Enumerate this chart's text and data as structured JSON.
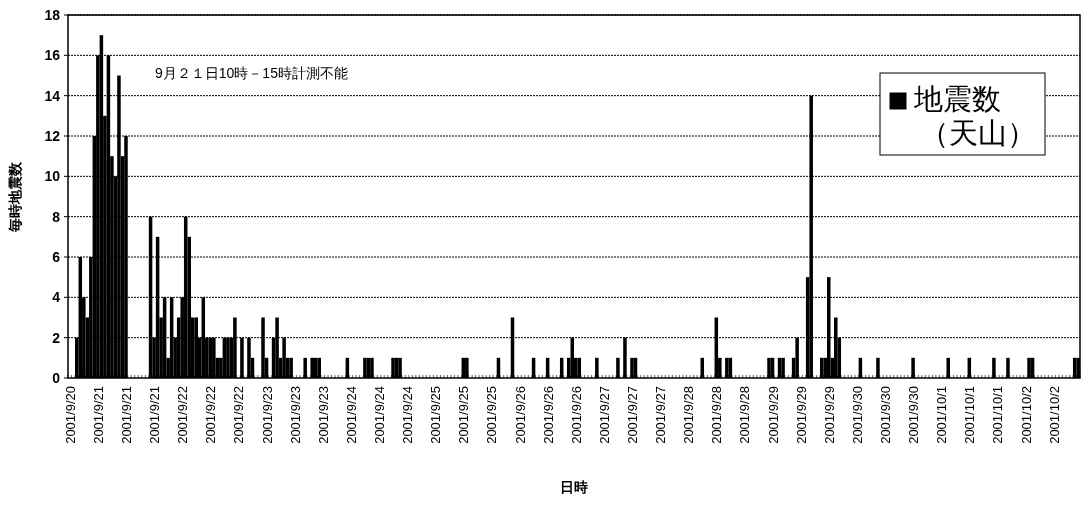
{
  "chart_data": {
    "type": "bar",
    "xlabel": "日時",
    "ylabel": "毎時地震数",
    "annotations": [
      "9月２１日10時－15時計測不能"
    ],
    "categories": [
      "2001/9/20",
      null,
      null,
      null,
      null,
      null,
      null,
      null,
      "2001/9/21",
      null,
      null,
      null,
      null,
      null,
      null,
      null,
      "2001/9/21",
      null,
      null,
      null,
      null,
      null,
      null,
      null,
      "2001/9/21",
      null,
      null,
      null,
      null,
      null,
      null,
      null,
      "2001/9/22",
      null,
      null,
      null,
      null,
      null,
      null,
      null,
      "2001/9/22",
      null,
      null,
      null,
      null,
      null,
      null,
      null,
      "2001/9/22",
      null,
      null,
      null,
      null,
      null,
      null,
      null,
      "2001/9/23",
      null,
      null,
      null,
      null,
      null,
      null,
      null,
      "2001/9/23",
      null,
      null,
      null,
      null,
      null,
      null,
      null,
      "2001/9/23",
      null,
      null,
      null,
      null,
      null,
      null,
      null,
      "2001/9/24",
      null,
      null,
      null,
      null,
      null,
      null,
      null,
      "2001/9/24",
      null,
      null,
      null,
      null,
      null,
      null,
      null,
      "2001/9/24",
      null,
      null,
      null,
      null,
      null,
      null,
      null,
      "2001/9/25",
      null,
      null,
      null,
      null,
      null,
      null,
      null,
      "2001/9/25",
      null,
      null,
      null,
      null,
      null,
      null,
      null,
      "2001/9/25",
      null,
      null,
      null,
      null,
      null,
      null,
      null,
      "2001/9/26",
      null,
      null,
      null,
      null,
      null,
      null,
      null,
      "2001/9/26",
      null,
      null,
      null,
      null,
      null,
      null,
      null,
      "2001/9/26",
      null,
      null,
      null,
      null,
      null,
      null,
      null,
      "2001/9/27",
      null,
      null,
      null,
      null,
      null,
      null,
      null,
      "2001/9/27",
      null,
      null,
      null,
      null,
      null,
      null,
      null,
      "2001/9/27",
      null,
      null,
      null,
      null,
      null,
      null,
      null,
      "2001/9/28",
      null,
      null,
      null,
      null,
      null,
      null,
      null,
      "2001/9/28",
      null,
      null,
      null,
      null,
      null,
      null,
      null,
      "2001/9/28",
      null,
      null,
      null,
      null,
      null,
      null,
      null,
      "2001/9/29",
      null,
      null,
      null,
      null,
      null,
      null,
      null,
      "2001/9/29",
      null,
      null,
      null,
      null,
      null,
      null,
      null,
      "2001/9/29",
      null,
      null,
      null,
      null,
      null,
      null,
      null,
      "2001/9/30",
      null,
      null,
      null,
      null,
      null,
      null,
      null,
      "2001/9/30",
      null,
      null,
      null,
      null,
      null,
      null,
      null,
      "2001/9/30",
      null,
      null,
      null,
      null,
      null,
      null,
      null,
      "2001/10/1",
      null,
      null,
      null,
      null,
      null,
      null,
      null,
      "2001/10/1",
      null,
      null,
      null,
      null,
      null,
      null,
      null,
      "2001/10/1",
      null,
      null,
      null,
      null,
      null,
      null,
      null,
      "2001/10/2",
      null,
      null,
      null,
      null,
      null,
      null,
      null,
      "2001/10/2",
      null,
      null,
      null,
      null,
      null,
      null,
      null
    ],
    "series": [
      {
        "name": "地震数（天山）",
        "color": "#000000",
        "values": [
          0,
          0,
          2,
          6,
          4,
          3,
          6,
          12,
          16,
          17,
          13,
          16,
          11,
          10,
          15,
          11,
          12,
          null,
          null,
          null,
          null,
          null,
          null,
          8,
          2,
          7,
          3,
          4,
          1,
          4,
          2,
          3,
          4,
          8,
          7,
          3,
          3,
          2,
          4,
          2,
          2,
          2,
          1,
          1,
          2,
          2,
          2,
          3,
          0,
          2,
          0,
          2,
          1,
          0,
          0,
          3,
          1,
          0,
          2,
          3,
          1,
          2,
          1,
          1,
          0,
          0,
          0,
          1,
          0,
          1,
          1,
          1,
          0,
          0,
          0,
          0,
          0,
          0,
          0,
          1,
          0,
          0,
          0,
          0,
          1,
          1,
          1,
          0,
          0,
          0,
          0,
          0,
          1,
          1,
          1,
          0,
          0,
          0,
          0,
          0,
          0,
          0,
          0,
          0,
          0,
          0,
          0,
          0,
          0,
          0,
          0,
          0,
          1,
          1,
          0,
          0,
          0,
          0,
          0,
          0,
          0,
          0,
          1,
          0,
          0,
          0,
          3,
          0,
          0,
          0,
          0,
          0,
          1,
          0,
          0,
          0,
          1,
          0,
          0,
          0,
          1,
          0,
          1,
          2,
          1,
          1,
          0,
          0,
          0,
          0,
          1,
          0,
          0,
          0,
          0,
          0,
          1,
          0,
          2,
          0,
          1,
          1,
          0,
          0,
          0,
          0,
          0,
          0,
          0,
          0,
          0,
          0,
          0,
          0,
          0,
          0,
          0,
          0,
          0,
          0,
          1,
          0,
          0,
          0,
          3,
          1,
          0,
          1,
          1,
          0,
          0,
          0,
          0,
          0,
          0,
          0,
          0,
          0,
          0,
          1,
          1,
          0,
          1,
          1,
          0,
          0,
          1,
          2,
          0,
          0,
          5,
          14,
          0,
          0,
          1,
          1,
          5,
          1,
          3,
          2,
          0,
          0,
          0,
          0,
          0,
          1,
          0,
          0,
          0,
          0,
          1,
          0,
          0,
          0,
          0,
          0,
          0,
          0,
          0,
          0,
          1,
          0,
          0,
          0,
          0,
          0,
          0,
          0,
          0,
          0,
          1,
          0,
          0,
          0,
          0,
          0,
          1,
          0,
          0,
          0,
          0,
          0,
          0,
          1,
          0,
          0,
          0,
          1,
          0,
          0,
          0,
          0,
          0,
          1,
          1,
          0,
          0,
          0,
          0,
          0,
          0,
          0,
          0,
          0,
          0,
          0,
          1,
          1
        ]
      }
    ],
    "ylim": [
      0,
      18
    ],
    "yticks": [
      0,
      2,
      4,
      6,
      8,
      10,
      12,
      14,
      16,
      18
    ],
    "grid": "y",
    "legend": "top right"
  }
}
